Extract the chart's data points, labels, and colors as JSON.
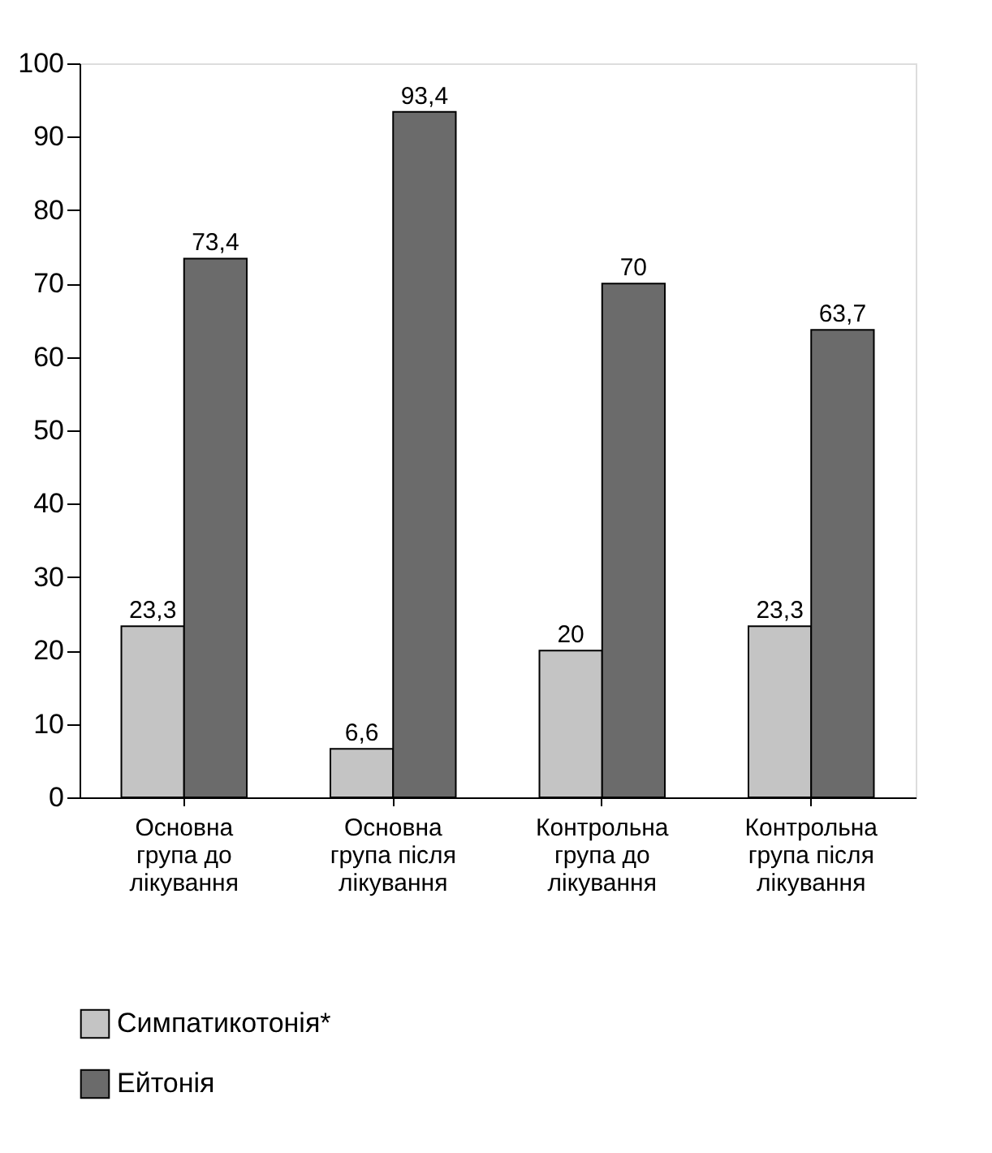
{
  "chart_data": {
    "type": "bar",
    "categories": [
      "Основна група до лікування",
      "Основна група після лікування",
      "Контрольна група до лікування",
      "Контрольна група після лікування"
    ],
    "series": [
      {
        "name": "Симпатикотонія*",
        "color": "#c4c4c4",
        "values": [
          23.3,
          6.6,
          20,
          23.3
        ],
        "value_labels": [
          "23,3",
          "6,6",
          "20",
          "23,3"
        ]
      },
      {
        "name": "Ейтонія",
        "color": "#6b6b6b",
        "values": [
          73.4,
          93.4,
          70,
          63.7
        ],
        "value_labels": [
          "73,4",
          "93,4",
          "70",
          "63,7"
        ]
      }
    ],
    "ylim": [
      0,
      100
    ],
    "yticks": [
      0,
      10,
      20,
      30,
      40,
      50,
      60,
      70,
      80,
      90,
      100
    ],
    "grid": false,
    "legend": "bottom left"
  }
}
